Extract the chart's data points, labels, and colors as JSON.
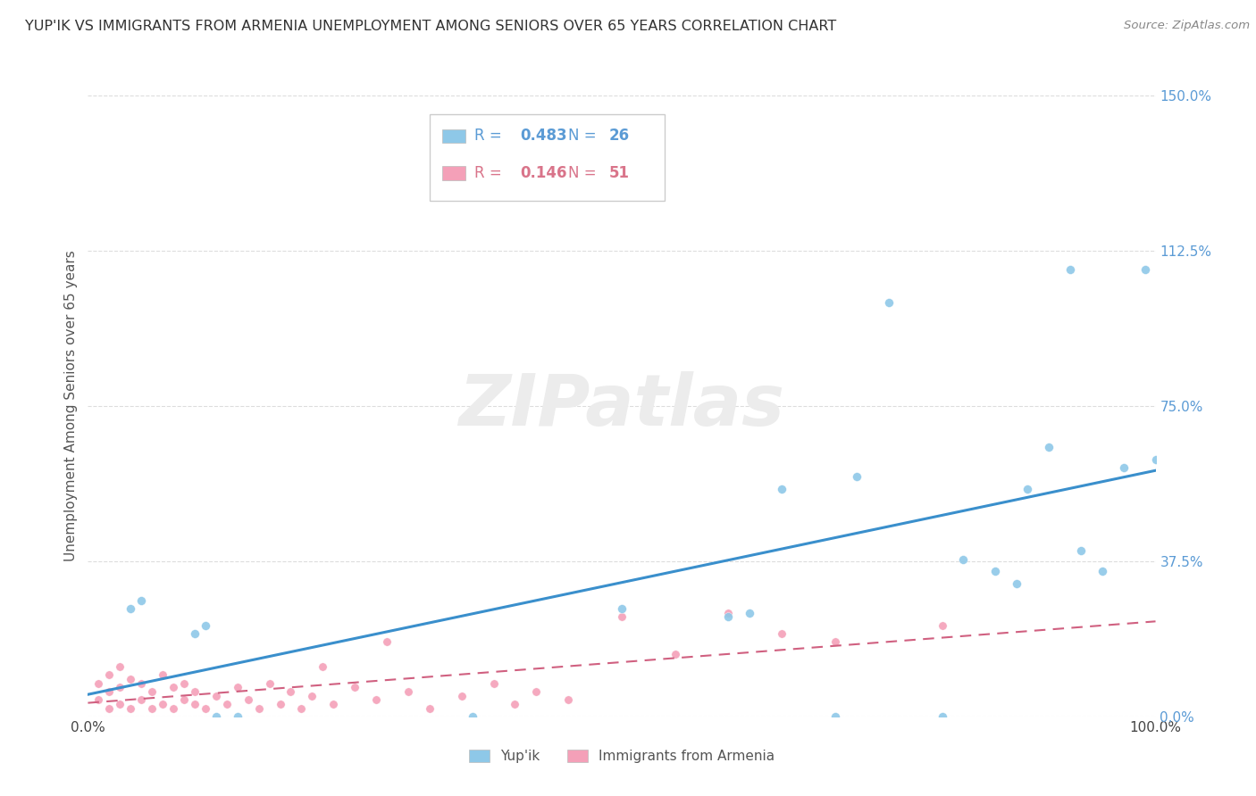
{
  "title": "YUP'IK VS IMMIGRANTS FROM ARMENIA UNEMPLOYMENT AMONG SENIORS OVER 65 YEARS CORRELATION CHART",
  "source": "Source: ZipAtlas.com",
  "ylabel": "Unemployment Among Seniors over 65 years",
  "xmin": 0.0,
  "xmax": 1.0,
  "ymin": 0.0,
  "ymax": 1.5,
  "xticks": [
    0.0,
    1.0
  ],
  "xticklabels": [
    "0.0%",
    "100.0%"
  ],
  "yticks": [
    0.0,
    0.375,
    0.75,
    1.125,
    1.5
  ],
  "yticklabels": [
    "0.0%",
    "37.5%",
    "75.0%",
    "112.5%",
    "150.0%"
  ],
  "color_yupik": "#8ec8e8",
  "color_armenia": "#f4a0b8",
  "color_line_yupik": "#3a8fcc",
  "color_line_armenia": "#d06080",
  "watermark_text": "ZIPatlas",
  "yupik_x": [
    0.04,
    0.05,
    0.1,
    0.11,
    0.36,
    0.5,
    0.6,
    0.65,
    0.7,
    0.72,
    0.75,
    0.8,
    0.82,
    0.85,
    0.87,
    0.9,
    0.92,
    0.95,
    0.97,
    1.0,
    0.12,
    0.14,
    0.62,
    0.88,
    0.93,
    0.99
  ],
  "yupik_y": [
    0.26,
    0.28,
    0.2,
    0.22,
    0.0,
    0.26,
    0.24,
    0.55,
    0.0,
    0.58,
    1.0,
    0.0,
    0.38,
    0.35,
    0.32,
    0.65,
    1.08,
    0.35,
    0.6,
    0.62,
    0.0,
    0.0,
    0.25,
    0.55,
    0.4,
    1.08
  ],
  "armenia_x": [
    0.01,
    0.01,
    0.02,
    0.02,
    0.02,
    0.03,
    0.03,
    0.03,
    0.04,
    0.04,
    0.05,
    0.05,
    0.06,
    0.06,
    0.07,
    0.07,
    0.08,
    0.08,
    0.09,
    0.09,
    0.1,
    0.1,
    0.11,
    0.12,
    0.13,
    0.14,
    0.15,
    0.16,
    0.17,
    0.18,
    0.19,
    0.2,
    0.21,
    0.22,
    0.23,
    0.25,
    0.27,
    0.28,
    0.3,
    0.32,
    0.35,
    0.38,
    0.4,
    0.42,
    0.45,
    0.5,
    0.55,
    0.6,
    0.65,
    0.7,
    0.8
  ],
  "armenia_y": [
    0.04,
    0.08,
    0.02,
    0.06,
    0.1,
    0.03,
    0.07,
    0.12,
    0.02,
    0.09,
    0.04,
    0.08,
    0.02,
    0.06,
    0.03,
    0.1,
    0.02,
    0.07,
    0.04,
    0.08,
    0.03,
    0.06,
    0.02,
    0.05,
    0.03,
    0.07,
    0.04,
    0.02,
    0.08,
    0.03,
    0.06,
    0.02,
    0.05,
    0.12,
    0.03,
    0.07,
    0.04,
    0.18,
    0.06,
    0.02,
    0.05,
    0.08,
    0.03,
    0.06,
    0.04,
    0.24,
    0.15,
    0.25,
    0.2,
    0.18,
    0.22
  ]
}
